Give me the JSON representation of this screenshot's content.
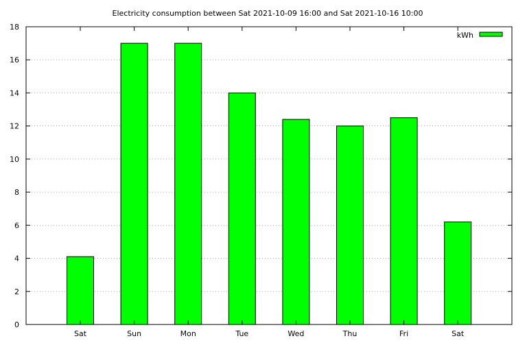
{
  "chart_data": {
    "type": "bar",
    "title": "Electricity consumption between Sat 2021-10-09 16:00 and Sat 2021-10-16 10:00",
    "xlabel": "",
    "ylabel": "",
    "categories": [
      "Sat",
      "Sun",
      "Mon",
      "Tue",
      "Wed",
      "Thu",
      "Fri",
      "Sat"
    ],
    "series": [
      {
        "name": "kWh",
        "values": [
          4.1,
          17.0,
          17.0,
          14.0,
          12.4,
          12.0,
          12.5,
          6.2
        ]
      }
    ],
    "ylim": [
      0,
      18
    ],
    "yticks": [
      0,
      2,
      4,
      6,
      8,
      10,
      12,
      14,
      16,
      18
    ],
    "grid": "horizontal-dotted",
    "legend_position": "top-right",
    "bar_color": "#00ff00"
  }
}
